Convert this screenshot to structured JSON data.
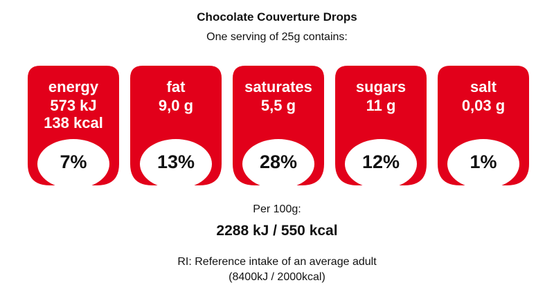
{
  "title": "Chocolate Couverture Drops",
  "serving_text": "One serving of 25g contains:",
  "colors": {
    "label_fill": "#e2001a",
    "label_text": "#ffffff",
    "percent_bg": "#ffffff"
  },
  "nutrients": [
    {
      "name": "energy",
      "amount_line1": "573 kJ",
      "amount_line2": "138 kcal",
      "percent": "7%"
    },
    {
      "name": "fat",
      "amount_line1": "9,0 g",
      "percent": "13%"
    },
    {
      "name": "saturates",
      "amount_line1": "5,5 g",
      "percent": "28%"
    },
    {
      "name": "sugars",
      "amount_line1": "11 g",
      "percent": "12%"
    },
    {
      "name": "salt",
      "amount_line1": "0,03 g",
      "percent": "1%"
    }
  ],
  "per100": {
    "label": "Per 100g:",
    "value": "2288 kJ / 550 kcal"
  },
  "reference": {
    "line1": "RI: Reference intake of an average adult",
    "line2": "(8400kJ / 2000kcal)"
  }
}
